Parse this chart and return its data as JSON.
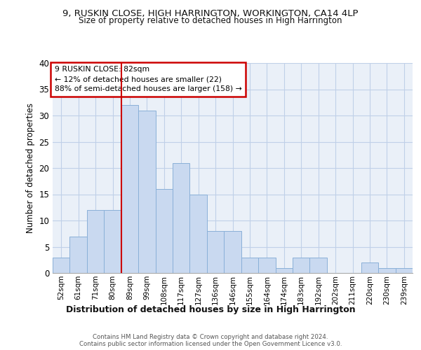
{
  "title1": "9, RUSKIN CLOSE, HIGH HARRINGTON, WORKINGTON, CA14 4LP",
  "title2": "Size of property relative to detached houses in High Harrington",
  "xlabel": "Distribution of detached houses by size in High Harrington",
  "ylabel": "Number of detached properties",
  "footer1": "Contains HM Land Registry data © Crown copyright and database right 2024.",
  "footer2": "Contains public sector information licensed under the Open Government Licence v3.0.",
  "annotation_title": "9 RUSKIN CLOSE: 82sqm",
  "annotation_line1": "← 12% of detached houses are smaller (22)",
  "annotation_line2": "88% of semi-detached houses are larger (158) →",
  "bar_labels": [
    "52sqm",
    "61sqm",
    "71sqm",
    "80sqm",
    "89sqm",
    "99sqm",
    "108sqm",
    "117sqm",
    "127sqm",
    "136sqm",
    "146sqm",
    "155sqm",
    "164sqm",
    "174sqm",
    "183sqm",
    "192sqm",
    "202sqm",
    "211sqm",
    "220sqm",
    "230sqm",
    "239sqm"
  ],
  "bar_values": [
    3,
    7,
    12,
    12,
    32,
    31,
    16,
    21,
    15,
    8,
    8,
    3,
    3,
    1,
    3,
    3,
    0,
    0,
    2,
    1,
    1
  ],
  "bar_color": "#c9d9f0",
  "bar_edgecolor": "#8ab0d8",
  "vline_color": "#cc0000",
  "vline_x": 3.5,
  "grid_color": "#c0d0e8",
  "bg_color": "#eaf0f8",
  "annotation_box_color": "#ffffff",
  "annotation_box_edgecolor": "#cc0000",
  "ylim": [
    0,
    40
  ],
  "yticks": [
    0,
    5,
    10,
    15,
    20,
    25,
    30,
    35,
    40
  ]
}
